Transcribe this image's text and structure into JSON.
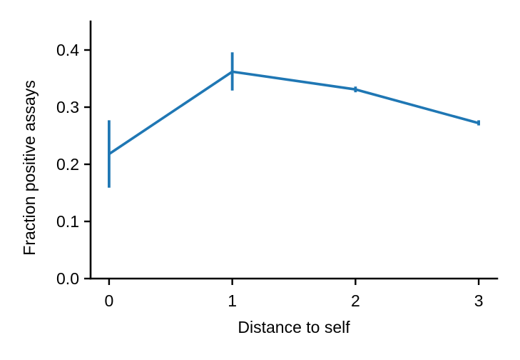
{
  "chart_data": {
    "type": "line",
    "title": "",
    "xlabel": "Distance to self",
    "ylabel": "Fraction positive assays",
    "x": [
      0,
      1,
      2,
      3
    ],
    "series": [
      {
        "values": [
          0.218,
          0.362,
          0.331,
          0.272
        ],
        "error_low": [
          0.159,
          0.329,
          0.326,
          0.268
        ],
        "error_high": [
          0.277,
          0.396,
          0.336,
          0.277
        ],
        "color": "#1f77b4"
      }
    ],
    "xticks": [
      0,
      1,
      2,
      3
    ],
    "xtick_labels": [
      "0",
      "1",
      "2",
      "3"
    ],
    "yticks": [
      0.0,
      0.1,
      0.2,
      0.3,
      0.4
    ],
    "ytick_labels": [
      "0.0",
      "0.1",
      "0.2",
      "0.3",
      "0.4"
    ],
    "xlim": [
      -0.15,
      3.15
    ],
    "ylim": [
      0.0,
      0.45
    ],
    "grid": false,
    "legend": "none"
  }
}
